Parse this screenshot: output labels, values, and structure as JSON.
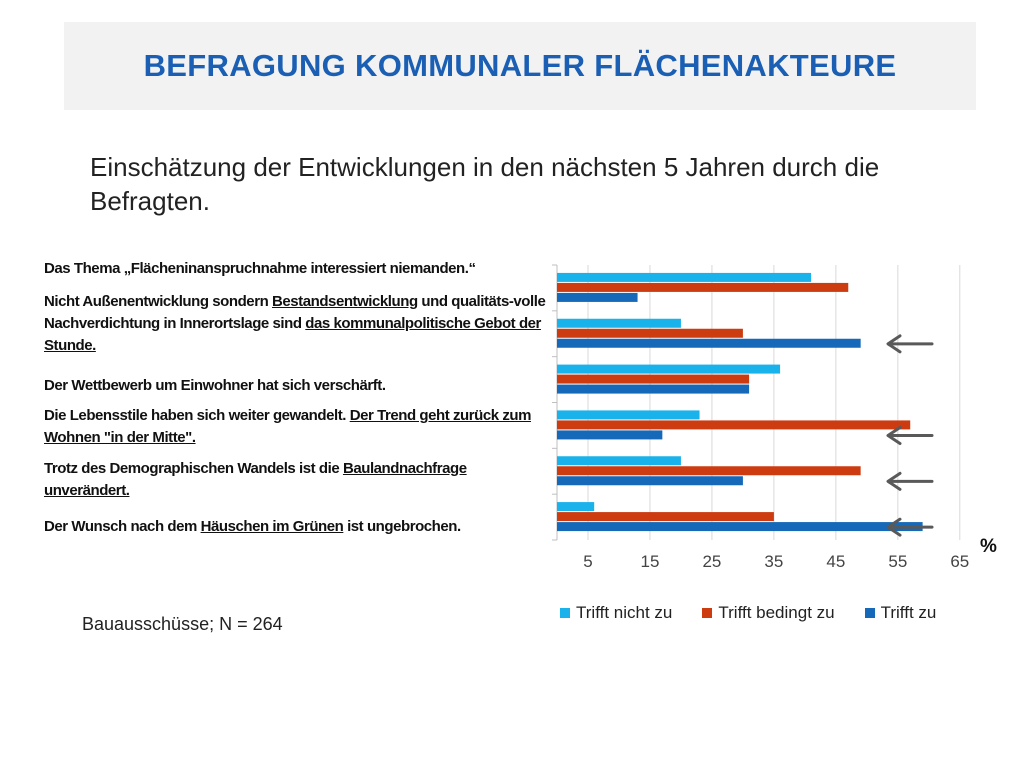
{
  "title": "BEFRAGUNG KOMMUNALER FLÄCHENAKTEURE",
  "subtitle": "Einschätzung der Entwicklungen in den nächsten 5 Jahren durch die Befragten.",
  "source": "Bauausschüsse; N = 264",
  "unit_label": "%",
  "statements": [
    [
      {
        "t": "Das Thema „Flächeninanspruchnahme interessiert niemanden.“",
        "u": false
      }
    ],
    [
      {
        "t": "Nicht Außenentwicklung sondern ",
        "u": false
      },
      {
        "t": "Bestandsentwicklung",
        "u": true
      },
      {
        "t": " und qualitäts-volle Nachverdichtung in Innerortslage sind ",
        "u": false
      },
      {
        "t": "das kommunalpolitische Gebot der Stunde.",
        "u": true
      }
    ],
    [
      {
        "t": "Der Wettbewerb um Einwohner hat sich verschärft.",
        "u": false
      }
    ],
    [
      {
        "t": "Die Lebensstile haben sich weiter gewandelt. ",
        "u": false
      },
      {
        "t": "Der Trend geht zurück zum Wohnen \"in der Mitte\".",
        "u": true
      }
    ],
    [
      {
        "t": "Trotz des Demographischen Wandels ist die ",
        "u": false
      },
      {
        "t": "Baulandnachfrage unverändert.",
        "u": true
      }
    ],
    [
      {
        "t": "Der Wunsch nach dem ",
        "u": false
      },
      {
        "t": "Häuschen im Grünen",
        "u": true
      },
      {
        "t": " ist ungebrochen.",
        "u": false
      }
    ]
  ],
  "arrows_on_statements": [
    1,
    3,
    4,
    5
  ],
  "colors": {
    "title": "#1a5fb4",
    "trifft_nicht_zu": "#1ab2ea",
    "trifft_bedingt_zu": "#cc3c10",
    "trifft_zu": "#1569b8",
    "grid": "#d9d9d9",
    "arrow": "#595959"
  },
  "chart_data": {
    "type": "bar",
    "orientation": "horizontal",
    "categories": [
      "Das Thema „Flächeninanspruchnahme interessiert niemanden.“",
      "Nicht Außenentwicklung sondern Bestandsentwicklung und qualitäts-volle Nachverdichtung in Innerortslage sind das kommunalpolitische Gebot der Stunde.",
      "Der Wettbewerb um Einwohner hat sich verschärft.",
      "Die Lebensstile haben sich weiter gewandelt. Der Trend geht zurück zum Wohnen \"in der Mitte\".",
      "Trotz des Demographischen Wandels ist die Baulandnachfrage unverändert.",
      "Der Wunsch nach dem Häuschen im Grünen ist ungebrochen."
    ],
    "series": [
      {
        "name": "Trifft nicht zu",
        "values": [
          41,
          20,
          36,
          23,
          20,
          6
        ]
      },
      {
        "name": "Trifft bedingt zu",
        "values": [
          47,
          30,
          31,
          57,
          49,
          35
        ]
      },
      {
        "name": "Trifft zu",
        "values": [
          13,
          49,
          31,
          17,
          30,
          59
        ]
      }
    ],
    "xlim": [
      0,
      66
    ],
    "xticks": [
      5,
      15,
      25,
      35,
      45,
      55,
      65
    ],
    "grid": true,
    "legend": "bottom"
  }
}
